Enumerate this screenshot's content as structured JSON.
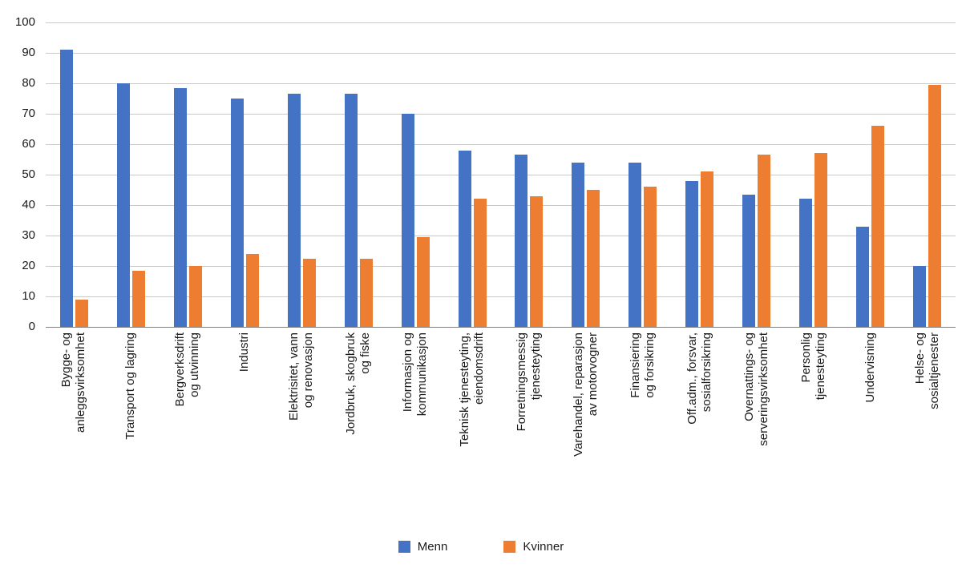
{
  "chart_data": {
    "type": "bar",
    "title": "",
    "xlabel": "",
    "ylabel": "",
    "ylim": [
      0,
      100
    ],
    "ytick_step": 10,
    "grid": "horizontal",
    "legend_position": "bottom",
    "categories": [
      [
        "Bygge- og",
        "anleggsvirksomhet"
      ],
      [
        "Transport og lagring"
      ],
      [
        "Bergverksdrift",
        "og utvinning"
      ],
      [
        "Industri"
      ],
      [
        "Elektrisitet, vann",
        "og renovasjon"
      ],
      [
        "Jordbruk, skogbruk",
        "og fiske"
      ],
      [
        "Informasjon og",
        "kommunikasjon"
      ],
      [
        "Teknisk tjenesteyting,",
        "eiendomsdrift"
      ],
      [
        "Forretningsmessig",
        "tjenesteyting"
      ],
      [
        "Varehandel, reparasjon",
        "av motorvogner"
      ],
      [
        "Finansiering",
        "og forsikring"
      ],
      [
        "Off.adm., forsvar,",
        "sosialforsikring"
      ],
      [
        "Overnattings- og",
        "serveringsvirksomhet"
      ],
      [
        "Personlig",
        "tjenesteyting"
      ],
      [
        "Undervisning"
      ],
      [
        "Helse- og",
        "sosialtjenester"
      ]
    ],
    "series": [
      {
        "name": "Menn",
        "color": "#4472C4",
        "values": [
          91,
          80,
          78.5,
          75,
          76.5,
          76.5,
          70,
          58,
          56.5,
          54,
          54,
          48,
          43.5,
          42,
          33,
          20
        ]
      },
      {
        "name": "Kvinner",
        "color": "#ED7D31",
        "values": [
          9,
          18.5,
          20,
          24,
          22.5,
          22.5,
          29.5,
          42,
          43,
          45,
          46,
          51,
          56.5,
          57,
          66,
          79.5
        ]
      }
    ]
  },
  "colors": {
    "grid": "#c9c9c9",
    "axis": "#7f7f7f",
    "text": "#1a1a1a",
    "menn": "#4472C4",
    "kvinner": "#ED7D31"
  }
}
